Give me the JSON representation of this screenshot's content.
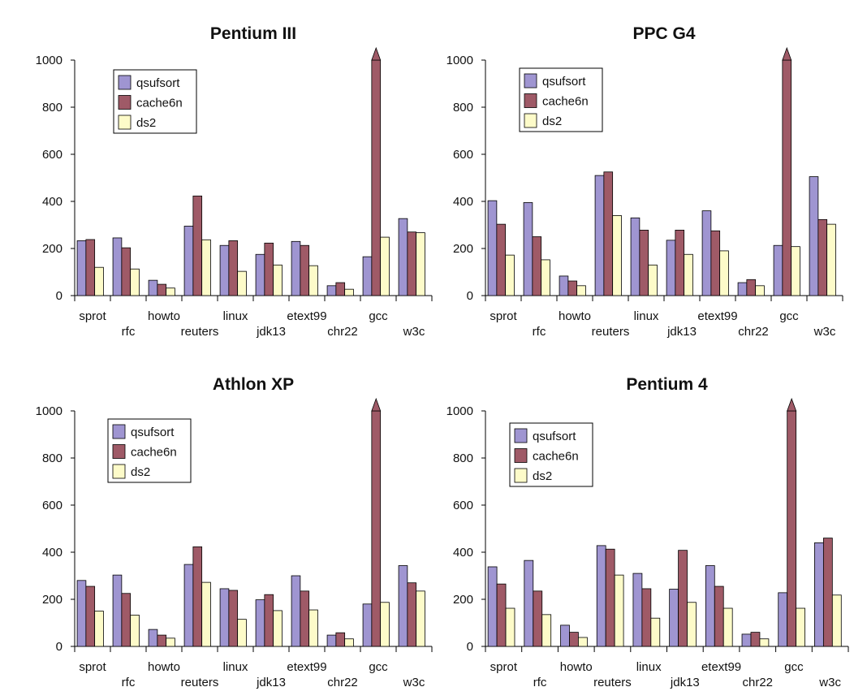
{
  "chart_data": [
    {
      "type": "bar",
      "title": "Pentium III",
      "categories": [
        "sprot",
        "rfc",
        "howto",
        "reuters",
        "linux",
        "jdk13",
        "etext99",
        "chr22",
        "gcc",
        "w3c"
      ],
      "series": [
        {
          "name": "qsufsort",
          "values": [
            233,
            245,
            65,
            295,
            213,
            175,
            230,
            42,
            165,
            327
          ]
        },
        {
          "name": "cache6n",
          "values": [
            238,
            203,
            48,
            423,
            233,
            223,
            213,
            55,
            1000,
            270
          ]
        },
        {
          "name": "ds2",
          "values": [
            120,
            113,
            32,
            237,
            103,
            130,
            127,
            27,
            248,
            267
          ]
        }
      ],
      "truncated": [
        {
          "category": "gcc",
          "series": "cache6n",
          "marker": "arrow"
        }
      ],
      "ylim": [
        0,
        1000
      ],
      "yticks": [
        0,
        200,
        400,
        600,
        800,
        1000
      ],
      "legend_position": "top-left",
      "grid": false
    },
    {
      "type": "bar",
      "title": "PPC G4",
      "categories": [
        "sprot",
        "rfc",
        "howto",
        "reuters",
        "linux",
        "jdk13",
        "etext99",
        "chr22",
        "gcc",
        "w3c"
      ],
      "series": [
        {
          "name": "qsufsort",
          "values": [
            403,
            395,
            83,
            510,
            330,
            235,
            360,
            55,
            213,
            505
          ]
        },
        {
          "name": "cache6n",
          "values": [
            303,
            250,
            62,
            525,
            278,
            278,
            275,
            68,
            1000,
            323
          ]
        },
        {
          "name": "ds2",
          "values": [
            172,
            152,
            42,
            340,
            130,
            175,
            190,
            42,
            208,
            303
          ]
        }
      ],
      "truncated": [
        {
          "category": "gcc",
          "series": "cache6n",
          "marker": "arrow"
        }
      ],
      "ylim": [
        0,
        1000
      ],
      "yticks": [
        0,
        200,
        400,
        600,
        800,
        1000
      ],
      "legend_position": "top-left",
      "grid": false
    },
    {
      "type": "bar",
      "title": "Athlon XP",
      "categories": [
        "sprot",
        "rfc",
        "howto",
        "reuters",
        "linux",
        "jdk13",
        "etext99",
        "chr22",
        "gcc",
        "w3c"
      ],
      "series": [
        {
          "name": "qsufsort",
          "values": [
            280,
            303,
            72,
            348,
            245,
            198,
            300,
            48,
            180,
            343
          ]
        },
        {
          "name": "cache6n",
          "values": [
            255,
            225,
            48,
            423,
            238,
            220,
            235,
            58,
            1000,
            270
          ]
        },
        {
          "name": "ds2",
          "values": [
            150,
            133,
            35,
            272,
            115,
            152,
            155,
            32,
            187,
            235
          ]
        }
      ],
      "truncated": [
        {
          "category": "gcc",
          "series": "cache6n",
          "marker": "arrow"
        }
      ],
      "ylim": [
        0,
        1000
      ],
      "yticks": [
        0,
        200,
        400,
        600,
        800,
        1000
      ],
      "legend_position": "top-left",
      "grid": false
    },
    {
      "type": "bar",
      "title": "Pentium 4",
      "categories": [
        "sprot",
        "rfc",
        "howto",
        "reuters",
        "linux",
        "jdk13",
        "etext99",
        "chr22",
        "gcc",
        "w3c"
      ],
      "series": [
        {
          "name": "qsufsort",
          "values": [
            338,
            365,
            90,
            428,
            310,
            243,
            343,
            52,
            228,
            440
          ]
        },
        {
          "name": "cache6n",
          "values": [
            265,
            235,
            60,
            413,
            245,
            408,
            255,
            60,
            1000,
            460
          ]
        },
        {
          "name": "ds2",
          "values": [
            162,
            135,
            38,
            303,
            120,
            187,
            162,
            32,
            162,
            218
          ]
        }
      ],
      "truncated": [
        {
          "category": "gcc",
          "series": "cache6n",
          "marker": "arrow"
        }
      ],
      "ylim": [
        0,
        1000
      ],
      "yticks": [
        0,
        200,
        400,
        600,
        800,
        1000
      ],
      "legend_position": "top-left",
      "grid": false
    }
  ],
  "colors": {
    "qsufsort": "#9f95d1",
    "cache6n": "#9f5a67",
    "ds2": "#fdfbc9",
    "outline": "#000000"
  }
}
